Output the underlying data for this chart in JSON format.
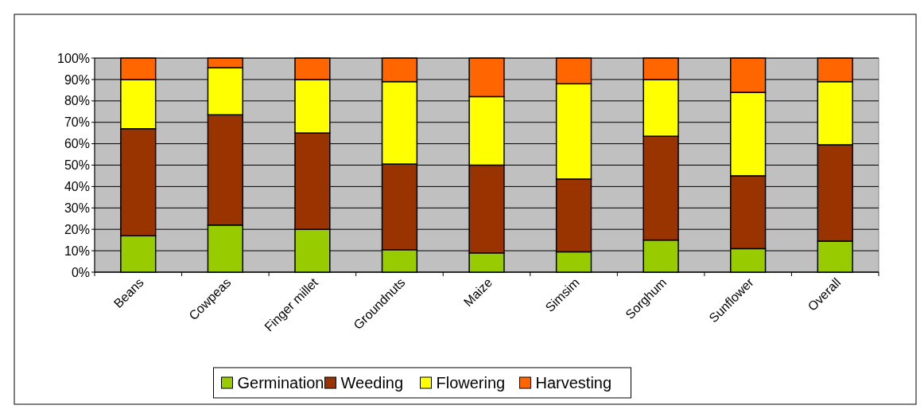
{
  "chart_data": {
    "type": "bar",
    "stacked": true,
    "categories": [
      "Beans",
      "Cowpeas",
      "Finger millet",
      "Groundnuts",
      "Maize",
      "Simsim",
      "Sorghum",
      "Sunflower",
      "Overall"
    ],
    "series": [
      {
        "name": "Germination",
        "color": "#99cc00",
        "values": [
          17,
          22,
          20,
          10.5,
          9,
          9.5,
          15,
          11,
          14.5
        ]
      },
      {
        "name": "Weeding",
        "color": "#993300",
        "values": [
          50,
          51.5,
          45,
          40,
          41,
          34,
          48.5,
          34,
          45
        ]
      },
      {
        "name": "Flowering",
        "color": "#ffff00",
        "values": [
          23,
          22,
          25,
          38.5,
          32,
          44.5,
          26.5,
          39,
          29.5
        ]
      },
      {
        "name": "Harvesting",
        "color": "#ff6600",
        "values": [
          10,
          4.5,
          10,
          11,
          18,
          12,
          10,
          16,
          11
        ]
      }
    ],
    "ylim": [
      0,
      100
    ],
    "yticks": [
      {
        "value": 0,
        "label": "0%"
      },
      {
        "value": 10,
        "label": "10%"
      },
      {
        "value": 20,
        "label": "20%"
      },
      {
        "value": 30,
        "label": "30%"
      },
      {
        "value": 40,
        "label": "40%"
      },
      {
        "value": 50,
        "label": "50%"
      },
      {
        "value": 60,
        "label": "60%"
      },
      {
        "value": 70,
        "label": "70%"
      },
      {
        "value": 80,
        "label": "80%"
      },
      {
        "value": 90,
        "label": "90%"
      },
      {
        "value": 100,
        "label": "100%"
      }
    ],
    "grid": "y",
    "legend": "bottom"
  }
}
